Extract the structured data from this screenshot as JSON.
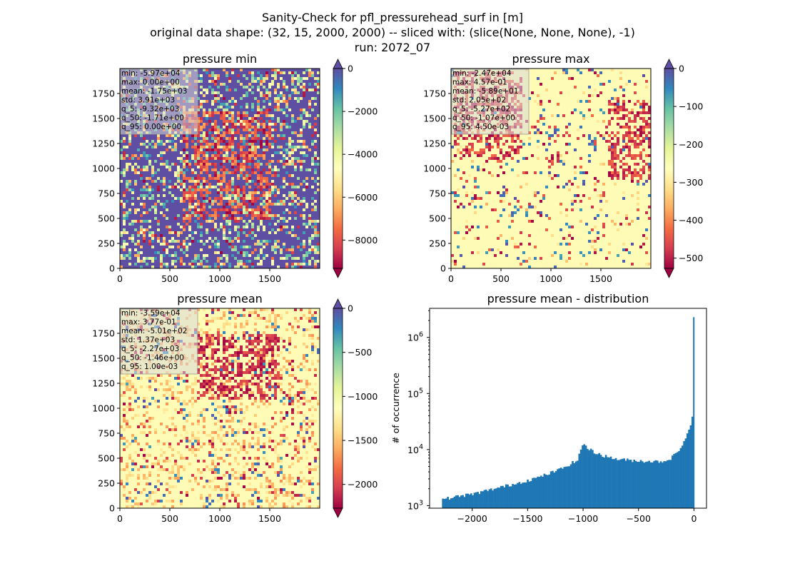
{
  "figure": {
    "title_lines": [
      "Sanity-Check for pfl_pressurehead_surf in [m]",
      "original data shape: (32, 15, 2000, 2000) -- sliced with: (slice(None, None, None), -1)",
      "run: 2072_07"
    ]
  },
  "panels": [
    {
      "title": "pressure min",
      "cmap": "Spectral",
      "background": "#5e4fa2",
      "xlim": [
        0,
        2000
      ],
      "ylim": [
        0,
        2000
      ],
      "xticks": [
        0,
        500,
        1000,
        1500
      ],
      "yticks": [
        0,
        250,
        500,
        750,
        1000,
        1250,
        1500,
        1750
      ],
      "colorbar": {
        "min": -9320,
        "max": 0,
        "ticks": [
          0,
          -2000,
          -4000,
          -6000,
          -8000
        ]
      },
      "stats": [
        "min: -5.97e+04",
        "max: 0.00e+00",
        "mean: -1.75e+03",
        "std: 3.91e+03",
        "q_5: -9.32e+03",
        "q_50: -1.71e+00",
        "q_95: 0.00e+00"
      ]
    },
    {
      "title": "pressure max",
      "cmap": "Spectral",
      "background": "#fdfbb5",
      "xlim": [
        0,
        2000
      ],
      "ylim": [
        0,
        2000
      ],
      "xticks": [
        0,
        500,
        1000,
        1500
      ],
      "yticks": [
        0,
        250,
        500,
        750,
        1000,
        1250,
        1500,
        1750
      ],
      "colorbar": {
        "min": -527,
        "max": 0,
        "ticks": [
          0,
          -100,
          -200,
          -300,
          -400,
          -500
        ]
      },
      "stats": [
        "min: -2.47e+04",
        "max: 4.57e-01",
        "mean: -5.89e+01",
        "std: 2.05e+02",
        "q_5: -5.27e+02",
        "q_50: -1.07e+00",
        "q_95: 4.50e-03"
      ]
    },
    {
      "title": "pressure mean",
      "cmap": "Spectral",
      "background": "#fdfbb5",
      "xlim": [
        0,
        2000
      ],
      "ylim": [
        0,
        2000
      ],
      "xticks": [
        0,
        500,
        1000,
        1500
      ],
      "yticks": [
        0,
        250,
        500,
        750,
        1000,
        1250,
        1500,
        1750
      ],
      "colorbar": {
        "min": -2270,
        "max": 0,
        "ticks": [
          0,
          -500,
          -1000,
          -1500,
          -2000
        ]
      },
      "stats": [
        "min: -3.59e+04",
        "max: 3.77e-01",
        "mean: -5.01e+02",
        "std: 1.37e+03",
        "q_5: -2.27e+03",
        "q_50: -1.46e+00",
        "q_95: 1.00e-03"
      ]
    }
  ],
  "chart_data": {
    "type": "bar",
    "title": "pressure mean - distribution",
    "xlabel": "",
    "ylabel": "# of occurrence",
    "yscale": "log",
    "color": "#1f77b4",
    "xlim": [
      -2384,
      113
    ],
    "ylim": [
      900,
      3300000
    ],
    "xticks": [
      -2000,
      -1500,
      -1000,
      -500,
      0
    ],
    "yticks": [
      1000,
      10000,
      100000,
      1000000
    ],
    "ytick_labels": [
      [
        "10",
        "3"
      ],
      [
        "10",
        "4"
      ],
      [
        "10",
        "5"
      ],
      [
        "10",
        "6"
      ]
    ],
    "bin_width": 15,
    "x": [
      -2265,
      -2100,
      -2000,
      -1800,
      -1600,
      -1400,
      -1200,
      -1050,
      -1000,
      -985,
      -960,
      -900,
      -800,
      -700,
      -600,
      -500,
      -400,
      -300,
      -240,
      -200,
      -150,
      -100,
      -75,
      -50,
      -35,
      -25,
      -15,
      -5
    ],
    "values": [
      1300,
      1500,
      1600,
      2000,
      2500,
      3200,
      4500,
      6500,
      13000,
      12500,
      10500,
      9000,
      7600,
      6800,
      6500,
      6300,
      6200,
      6100,
      6500,
      7200,
      9000,
      12500,
      16000,
      20000,
      26000,
      32000,
      40000,
      2300000
    ]
  }
}
